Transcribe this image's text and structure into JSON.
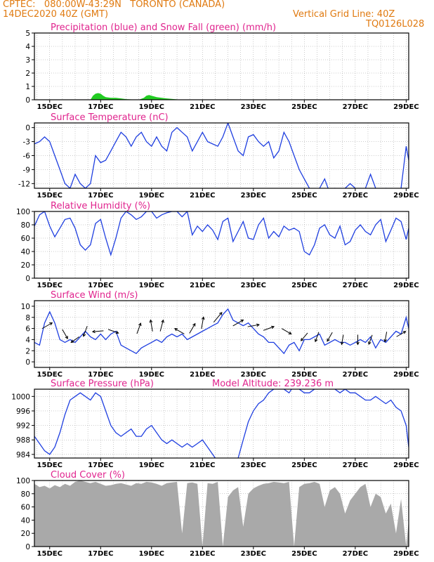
{
  "header": {
    "station_line": "CPTEC:   080:00W-43:29N   TORONTO (CANADA)",
    "date_line": "14DEC2020 40Z (GMT)",
    "grid_note": "Vertical Grid Line: 40Z",
    "code": "TQ0126L028"
  },
  "colors": {
    "header": "#e07a10",
    "title": "#e0248e",
    "line": "#1f3fe0",
    "snow": "#22cc22",
    "cloud": "#a9a9a9",
    "grid": "#999999"
  },
  "x_axis": {
    "ticks": [
      "15DEC",
      "17DEC",
      "19DEC",
      "21DEC",
      "23DEC",
      "25DEC",
      "27DEC",
      "29DEC"
    ],
    "range_days": [
      14.4,
      29.1
    ]
  },
  "chart_data": [
    {
      "type": "area",
      "title": "Precipitation (blue) and Snow Fall (green) (mm/h)",
      "ylim": [
        0,
        5
      ],
      "yticks": [
        "0",
        "1",
        "2",
        "3",
        "4",
        "5"
      ],
      "grid": true,
      "series": [
        {
          "name": "Snow Fall",
          "color": "#22cc22",
          "x": [
            14.4,
            16.6,
            16.7,
            16.8,
            16.9,
            17.0,
            17.1,
            17.2,
            17.4,
            17.6,
            17.8,
            18.0,
            18.5,
            18.7,
            18.8,
            18.9,
            19.0,
            19.1,
            19.2,
            19.4,
            19.6,
            19.9,
            20.2,
            21.0,
            23.0,
            25.0,
            26.0,
            27.0,
            28.0,
            29.1
          ],
          "values": [
            0,
            0,
            0.3,
            0.45,
            0.5,
            0.45,
            0.3,
            0.2,
            0.15,
            0.15,
            0.1,
            0.05,
            0,
            0.15,
            0.3,
            0.35,
            0.3,
            0.25,
            0.2,
            0.15,
            0.1,
            0.05,
            0,
            0,
            0.02,
            0.02,
            0.02,
            0.02,
            0.02,
            0
          ]
        }
      ]
    },
    {
      "type": "line",
      "title": "Surface Temperature (nC)",
      "ylim": [
        -13,
        1
      ],
      "yticks": [
        "0",
        "-3",
        "-6",
        "-9",
        "-12"
      ],
      "grid": true,
      "series": [
        {
          "name": "Surface Temperature",
          "x": [
            14.4,
            14.6,
            14.8,
            15.0,
            15.2,
            15.4,
            15.6,
            15.8,
            16.0,
            16.2,
            16.4,
            16.6,
            16.8,
            17.0,
            17.2,
            17.4,
            17.6,
            17.8,
            18.0,
            18.2,
            18.4,
            18.6,
            18.8,
            19.0,
            19.2,
            19.4,
            19.6,
            19.8,
            20.0,
            20.2,
            20.4,
            20.6,
            20.8,
            21.0,
            21.2,
            21.4,
            21.6,
            21.8,
            22.0,
            22.2,
            22.4,
            22.6,
            22.8,
            23.0,
            23.2,
            23.4,
            23.6,
            23.8,
            24.0,
            24.2,
            24.4,
            24.6,
            24.8,
            25.0,
            25.2,
            25.4,
            25.6,
            25.8,
            26.0,
            26.2,
            26.4,
            26.6,
            26.8,
            27.0,
            27.2,
            27.4,
            27.6,
            27.8,
            28.0,
            28.2,
            28.4,
            28.6,
            28.8,
            29.0,
            29.1
          ],
          "values": [
            -3.5,
            -3.0,
            -2.0,
            -3.0,
            -6.0,
            -9.0,
            -12.0,
            -13.0,
            -10.0,
            -12.0,
            -13.0,
            -12.0,
            -6.0,
            -7.5,
            -7.0,
            -5.0,
            -3.0,
            -1.0,
            -2.0,
            -4.0,
            -2.0,
            -1.0,
            -3.0,
            -4.0,
            -2.0,
            -4.0,
            -5.0,
            -1.0,
            0.0,
            -1.0,
            -2.0,
            -5.0,
            -3.0,
            -1.0,
            -3.0,
            -3.5,
            -4.0,
            -2.0,
            1.0,
            -2.0,
            -5.0,
            -6.0,
            -2.0,
            -1.5,
            -3.0,
            -4.0,
            -3.0,
            -6.5,
            -5.0,
            -1.0,
            -3.0,
            -6.0,
            -9.0,
            -11.0,
            -13.0,
            -14.0,
            -13.0,
            -11.0,
            -14.0,
            -13.0,
            -14.0,
            -13.0,
            -12.0,
            -13.0,
            -14.0,
            -13.0,
            -10.0,
            -13.0,
            -14.0,
            -13.0,
            -14.0,
            -13.5,
            -13.0,
            -4.0,
            -7.0
          ]
        }
      ]
    },
    {
      "type": "line",
      "title": "Relative Humidity (%)",
      "ylim": [
        0,
        100
      ],
      "yticks": [
        "0",
        "20",
        "40",
        "60",
        "80",
        "100"
      ],
      "grid": true,
      "series": [
        {
          "name": "Relative Humidity",
          "x": [
            14.4,
            14.6,
            14.8,
            15.0,
            15.2,
            15.4,
            15.6,
            15.8,
            16.0,
            16.2,
            16.4,
            16.6,
            16.8,
            17.0,
            17.2,
            17.4,
            17.6,
            17.8,
            18.0,
            18.2,
            18.4,
            18.6,
            18.8,
            19.0,
            19.2,
            19.4,
            19.6,
            19.8,
            20.0,
            20.2,
            20.4,
            20.6,
            20.8,
            21.0,
            21.2,
            21.4,
            21.6,
            21.8,
            22.0,
            22.2,
            22.4,
            22.6,
            22.8,
            23.0,
            23.2,
            23.4,
            23.6,
            23.8,
            24.0,
            24.2,
            24.4,
            24.6,
            24.8,
            25.0,
            25.2,
            25.4,
            25.6,
            25.8,
            26.0,
            26.2,
            26.4,
            26.6,
            26.8,
            27.0,
            27.2,
            27.4,
            27.6,
            27.8,
            28.0,
            28.2,
            28.4,
            28.6,
            28.8,
            29.0,
            29.1
          ],
          "values": [
            78,
            95,
            100,
            78,
            62,
            75,
            88,
            90,
            75,
            50,
            42,
            50,
            82,
            88,
            60,
            35,
            60,
            90,
            100,
            95,
            88,
            92,
            100,
            100,
            90,
            95,
            98,
            100,
            100,
            92,
            100,
            65,
            78,
            70,
            80,
            72,
            58,
            85,
            90,
            55,
            70,
            85,
            60,
            58,
            80,
            90,
            60,
            70,
            62,
            78,
            72,
            75,
            70,
            40,
            35,
            50,
            75,
            80,
            65,
            60,
            78,
            50,
            55,
            72,
            80,
            70,
            65,
            80,
            88,
            55,
            72,
            90,
            85,
            58,
            75
          ]
        }
      ]
    },
    {
      "type": "line",
      "title": "Surface Wind (m/s)",
      "ylim": [
        -1,
        11
      ],
      "yticks": [
        "0",
        "2",
        "4",
        "6",
        "8",
        "10"
      ],
      "grid": true,
      "series": [
        {
          "name": "Surface Wind",
          "x": [
            14.4,
            14.6,
            14.8,
            15.0,
            15.2,
            15.4,
            15.6,
            15.8,
            16.0,
            16.2,
            16.4,
            16.6,
            16.8,
            17.0,
            17.2,
            17.4,
            17.6,
            17.8,
            18.0,
            18.2,
            18.4,
            18.6,
            18.8,
            19.0,
            19.2,
            19.4,
            19.6,
            19.8,
            20.0,
            20.2,
            20.4,
            20.6,
            20.8,
            21.0,
            21.2,
            21.4,
            21.6,
            21.8,
            22.0,
            22.2,
            22.4,
            22.6,
            22.8,
            23.0,
            23.2,
            23.4,
            23.6,
            23.8,
            24.0,
            24.2,
            24.4,
            24.6,
            24.8,
            25.0,
            25.2,
            25.4,
            25.6,
            25.8,
            26.0,
            26.2,
            26.4,
            26.6,
            26.8,
            27.0,
            27.2,
            27.4,
            27.6,
            27.8,
            28.0,
            28.2,
            28.4,
            28.6,
            28.8,
            29.0,
            29.1
          ],
          "values": [
            3.5,
            3.0,
            7.0,
            9.0,
            7.0,
            4.0,
            3.5,
            4.0,
            3.5,
            4.5,
            5.5,
            4.5,
            4.0,
            5.0,
            4.0,
            5.0,
            5.5,
            3.0,
            2.5,
            2.0,
            1.5,
            2.5,
            3.0,
            3.5,
            4.0,
            3.5,
            4.5,
            5.0,
            4.5,
            5.0,
            4.0,
            4.5,
            5.0,
            5.5,
            6.0,
            6.5,
            7.0,
            8.5,
            9.5,
            7.5,
            7.0,
            6.5,
            7.0,
            6.0,
            5.0,
            4.5,
            3.5,
            3.5,
            2.5,
            1.5,
            3.0,
            3.5,
            2.0,
            4.0,
            4.0,
            4.5,
            5.0,
            3.0,
            3.5,
            4.0,
            3.5,
            3.5,
            3.0,
            3.5,
            4.0,
            3.5,
            4.5,
            2.5,
            4.0,
            3.5,
            4.5,
            5.5,
            5.0,
            8.0,
            6.0
          ]
        }
      ]
    },
    {
      "type": "line",
      "title": "Surface Pressure (hPa)",
      "annotation": "Model Altitude: 239.236  m",
      "ylim": [
        983,
        1002
      ],
      "yticks": [
        "984",
        "988",
        "992",
        "996",
        "1000"
      ],
      "grid": true,
      "series": [
        {
          "name": "Surface Pressure",
          "x": [
            14.4,
            14.6,
            14.8,
            15.0,
            15.2,
            15.4,
            15.6,
            15.8,
            16.0,
            16.2,
            16.4,
            16.6,
            16.8,
            17.0,
            17.2,
            17.4,
            17.6,
            17.8,
            18.0,
            18.2,
            18.4,
            18.6,
            18.8,
            19.0,
            19.2,
            19.4,
            19.6,
            19.8,
            20.0,
            20.2,
            20.4,
            20.6,
            20.8,
            21.0,
            21.2,
            21.4,
            21.6,
            21.8,
            22.0,
            22.2,
            22.4,
            22.6,
            22.8,
            23.0,
            23.2,
            23.4,
            23.6,
            23.8,
            24.0,
            24.2,
            24.4,
            24.6,
            24.8,
            25.0,
            25.2,
            25.4,
            25.6,
            25.8,
            26.0,
            26.2,
            26.4,
            26.6,
            26.8,
            27.0,
            27.2,
            27.4,
            27.6,
            27.8,
            28.0,
            28.2,
            28.4,
            28.6,
            28.8,
            29.0,
            29.1
          ],
          "values": [
            989,
            987,
            985,
            984,
            986,
            990,
            995,
            999,
            1000,
            1001,
            1000,
            999,
            1001,
            1000,
            996,
            992,
            990,
            989,
            990,
            991,
            989,
            989,
            991,
            992,
            990,
            988,
            987,
            988,
            987,
            986,
            987,
            986,
            987,
            988,
            986,
            984,
            982,
            982,
            981,
            982,
            983,
            988,
            993,
            996,
            998,
            999,
            1001,
            1002,
            1003,
            1002,
            1001,
            1003,
            1002,
            1001,
            1001,
            1002,
            1003,
            1002,
            1003,
            1002,
            1001,
            1002,
            1001,
            1001,
            1000,
            999,
            999,
            1000,
            999,
            998,
            999,
            997,
            996,
            992,
            986
          ]
        }
      ]
    },
    {
      "type": "area",
      "title": "Cloud Cover (%)",
      "ylim": [
        0,
        100
      ],
      "yticks": [
        "0",
        "20",
        "40",
        "60",
        "80",
        "100"
      ],
      "grid": true,
      "series": [
        {
          "name": "Cloud Cover",
          "color": "#a9a9a9",
          "x": [
            14.4,
            14.6,
            14.8,
            15.0,
            15.2,
            15.4,
            15.6,
            15.8,
            16.0,
            16.2,
            16.4,
            16.6,
            16.8,
            17.0,
            17.2,
            17.4,
            17.6,
            17.8,
            18.0,
            18.2,
            18.4,
            18.6,
            18.8,
            19.0,
            19.2,
            19.4,
            19.6,
            19.8,
            20.0,
            20.2,
            20.4,
            20.6,
            20.8,
            21.0,
            21.2,
            21.4,
            21.6,
            21.8,
            22.0,
            22.2,
            22.4,
            22.6,
            22.8,
            23.0,
            23.2,
            23.4,
            23.6,
            23.8,
            24.0,
            24.2,
            24.4,
            24.6,
            24.8,
            25.0,
            25.2,
            25.4,
            25.6,
            25.8,
            26.0,
            26.2,
            26.4,
            26.6,
            26.8,
            27.0,
            27.2,
            27.4,
            27.6,
            27.8,
            28.0,
            28.2,
            28.4,
            28.6,
            28.8,
            29.0,
            29.1
          ],
          "values": [
            95,
            90,
            92,
            88,
            93,
            90,
            95,
            92,
            98,
            100,
            98,
            96,
            98,
            95,
            92,
            93,
            95,
            96,
            94,
            92,
            96,
            95,
            98,
            97,
            95,
            92,
            96,
            97,
            98,
            20,
            96,
            97,
            95,
            0,
            96,
            95,
            98,
            0,
            75,
            85,
            90,
            30,
            80,
            88,
            92,
            95,
            96,
            98,
            97,
            96,
            98,
            0,
            90,
            95,
            96,
            98,
            95,
            60,
            85,
            90,
            80,
            50,
            70,
            80,
            90,
            95,
            60,
            80,
            75,
            50,
            65,
            20,
            72,
            0,
            40
          ]
        }
      ]
    }
  ],
  "wind_barbs": [
    {
      "day": 14.9,
      "speed": 6.5,
      "dir_deg": 60
    },
    {
      "day": 15.6,
      "speed": 5.0,
      "dir_deg": 150
    },
    {
      "day": 16.0,
      "speed": 4.0,
      "dir_deg": 235
    },
    {
      "day": 16.4,
      "speed": 5.5,
      "dir_deg": 200
    },
    {
      "day": 16.9,
      "speed": 5.5,
      "dir_deg": 265
    },
    {
      "day": 17.5,
      "speed": 5.5,
      "dir_deg": 110
    },
    {
      "day": 18.5,
      "speed": 6.0,
      "dir_deg": 20
    },
    {
      "day": 19.0,
      "speed": 6.5,
      "dir_deg": 350
    },
    {
      "day": 19.4,
      "speed": 6.5,
      "dir_deg": 15
    },
    {
      "day": 20.1,
      "speed": 5.5,
      "dir_deg": 300
    },
    {
      "day": 20.6,
      "speed": 6.0,
      "dir_deg": 30
    },
    {
      "day": 21.0,
      "speed": 7.0,
      "dir_deg": 10
    },
    {
      "day": 21.6,
      "speed": 8.0,
      "dir_deg": 40
    },
    {
      "day": 22.4,
      "speed": 7.0,
      "dir_deg": 60
    },
    {
      "day": 23.0,
      "speed": 6.5,
      "dir_deg": 80
    },
    {
      "day": 23.6,
      "speed": 6.0,
      "dir_deg": 70
    },
    {
      "day": 24.3,
      "speed": 5.5,
      "dir_deg": 120
    },
    {
      "day": 25.0,
      "speed": 4.5,
      "dir_deg": 220
    },
    {
      "day": 25.5,
      "speed": 4.5,
      "dir_deg": 200
    },
    {
      "day": 26.0,
      "speed": 4.5,
      "dir_deg": 210
    },
    {
      "day": 26.5,
      "speed": 4.0,
      "dir_deg": 190
    },
    {
      "day": 27.1,
      "speed": 4.0,
      "dir_deg": 180
    },
    {
      "day": 27.6,
      "speed": 4.0,
      "dir_deg": 200
    },
    {
      "day": 28.2,
      "speed": 4.5,
      "dir_deg": 190
    },
    {
      "day": 28.8,
      "speed": 5.0,
      "dir_deg": 60
    }
  ]
}
